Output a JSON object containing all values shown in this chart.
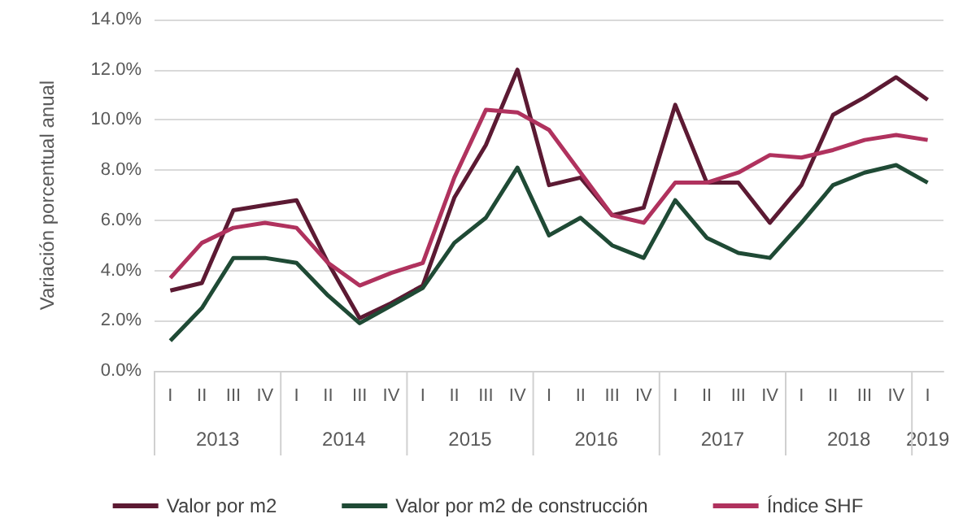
{
  "chart_data": {
    "type": "line",
    "ylabel": "Variación porcentual anual",
    "categories": [
      "I",
      "II",
      "III",
      "IV",
      "I",
      "II",
      "III",
      "IV",
      "I",
      "II",
      "III",
      "IV",
      "I",
      "II",
      "III",
      "IV",
      "I",
      "II",
      "III",
      "IV",
      "I",
      "II",
      "III",
      "IV",
      "I"
    ],
    "series": [
      {
        "name": "Valor por m2",
        "color": "#5c1a33",
        "values": [
          3.2,
          3.5,
          6.4,
          6.6,
          6.8,
          4.3,
          2.1,
          2.7,
          3.4,
          6.9,
          9.0,
          12.0,
          7.4,
          7.7,
          6.2,
          6.5,
          10.6,
          7.5,
          7.5,
          5.9,
          7.4,
          10.2,
          10.9,
          11.7,
          10.8
        ]
      },
      {
        "name": "Valor por m2 de construcción",
        "color": "#1f4a35",
        "values": [
          1.2,
          2.5,
          4.5,
          4.5,
          4.3,
          3.0,
          1.9,
          2.6,
          3.3,
          5.1,
          6.1,
          8.1,
          5.4,
          6.1,
          5.0,
          4.5,
          6.8,
          5.3,
          4.7,
          4.5,
          5.9,
          7.4,
          7.9,
          8.2,
          7.5
        ]
      },
      {
        "name": "Índice SHF",
        "color": "#b0325e",
        "values": [
          3.7,
          5.1,
          5.7,
          5.9,
          5.7,
          4.3,
          3.4,
          3.9,
          4.3,
          7.7,
          10.4,
          10.3,
          9.6,
          7.9,
          6.2,
          5.9,
          7.5,
          7.5,
          7.9,
          8.6,
          8.5,
          8.8,
          9.2,
          9.4,
          9.2
        ]
      }
    ],
    "ylim": [
      0,
      14
    ],
    "yticks": [
      {
        "value": 0,
        "label": "0.0%"
      },
      {
        "value": 2,
        "label": "2.0%"
      },
      {
        "value": 4,
        "label": "4.0%"
      },
      {
        "value": 6,
        "label": "6.0%"
      },
      {
        "value": 8,
        "label": "8.0%"
      },
      {
        "value": 10,
        "label": "10.0%"
      },
      {
        "value": 12,
        "label": "12.0%"
      },
      {
        "value": 14,
        "label": "14.0%"
      }
    ],
    "annotations": [
      "2013",
      "2014",
      "2015",
      "2016",
      "2017",
      "2018",
      "2019"
    ],
    "grid": "y",
    "legend": "bottom",
    "marker": "none",
    "line_style": "solid"
  }
}
